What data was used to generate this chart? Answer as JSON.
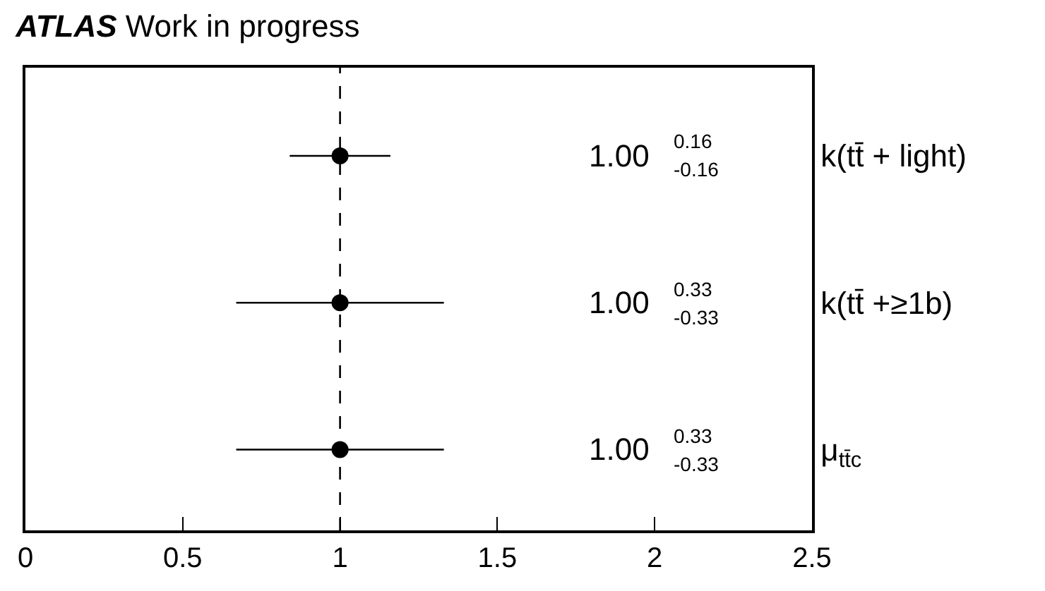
{
  "chart_data": {
    "type": "scatter",
    "orientation": "horizontal",
    "title": "ATLAS Work in progress",
    "categories": [
      "k(tt̄ + light)",
      "k(tt̄ +≥1b)",
      "μ$_{tt̄c}$"
    ],
    "series": [
      {
        "color": "#000000",
        "values": [
          1.0,
          1.0,
          1.0
        ],
        "errors": [
          0.16,
          0.33,
          0.33
        ]
      }
    ],
    "annotations": [
      "1.00 $^{0.16}$$_{-0.16}$",
      "1.00 $^{0.33}$$_{-0.33}$",
      "1.00 $^{0.33}$$_{-0.33}$"
    ],
    "xlim": [
      0,
      2.5
    ],
    "xticks": [
      0,
      0.5,
      1,
      1.5,
      2,
      2.5
    ],
    "ref_lines": [
      {
        "axis": "x",
        "value": 1,
        "line_style": "dashed",
        "color": "#000000"
      }
    ],
    "marker": "circle"
  }
}
